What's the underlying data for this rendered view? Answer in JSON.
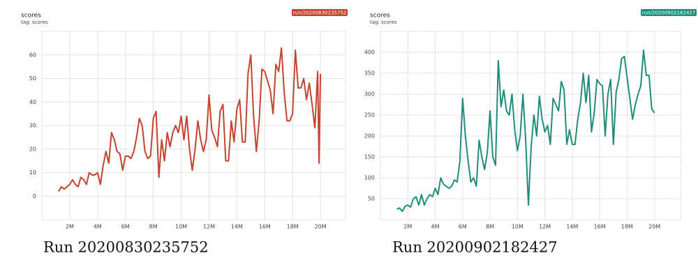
{
  "chart_data": [
    {
      "type": "line",
      "title": "scores",
      "subtitle": "tag: scores",
      "caption": "Run 20200830235752",
      "x": [
        1200000,
        1400000,
        1600000,
        1800000,
        2000000,
        2200000,
        2400000,
        2600000,
        2800000,
        3000000,
        3200000,
        3400000,
        3600000,
        3800000,
        4000000,
        4200000,
        4400000,
        4600000,
        4800000,
        5000000,
        5200000,
        5400000,
        5600000,
        5800000,
        6000000,
        6200000,
        6400000,
        6600000,
        6800000,
        7000000,
        7200000,
        7400000,
        7600000,
        7800000,
        8000000,
        8200000,
        8400000,
        8600000,
        8800000,
        9000000,
        9200000,
        9400000,
        9600000,
        9800000,
        10000000,
        10200000,
        10400000,
        10600000,
        10800000,
        11000000,
        11200000,
        11400000,
        11600000,
        11800000,
        12000000,
        12200000,
        12400000,
        12600000,
        12800000,
        13000000,
        13200000,
        13400000,
        13600000,
        13800000,
        14000000,
        14200000,
        14400000,
        14600000,
        14800000,
        15000000,
        15200000,
        15400000,
        15600000,
        15800000,
        16000000,
        16200000,
        16400000,
        16600000,
        16800000,
        17000000,
        17200000,
        17400000,
        17600000,
        17800000,
        18000000,
        18200000,
        18400000,
        18600000,
        18800000,
        19000000,
        19200000,
        19400000,
        19600000,
        19800000,
        19900000,
        20000000
      ],
      "series": [
        {
          "name": "run/20200830235752",
          "color": "#c4432f",
          "values": [
            2,
            4,
            3,
            4,
            5,
            7,
            5,
            4,
            8,
            7,
            5,
            10,
            9,
            9,
            10,
            5,
            13,
            19,
            14,
            27,
            24,
            19,
            18,
            11,
            17,
            17,
            16,
            19,
            25,
            33,
            30,
            19,
            16,
            17,
            33,
            36,
            8,
            24,
            15,
            27,
            21,
            27,
            30,
            27,
            34,
            24,
            34,
            20,
            11,
            20,
            32,
            24,
            19,
            24,
            43,
            28,
            25,
            21,
            36,
            39,
            15,
            15,
            32,
            23,
            37,
            41,
            23,
            23,
            52,
            60,
            34,
            19,
            32,
            54,
            53,
            49,
            45,
            35,
            56,
            53,
            63,
            44,
            32,
            32,
            35,
            62,
            46,
            46,
            50,
            41,
            48,
            39,
            29,
            53,
            14,
            52
          ]
        }
      ],
      "xlim": [
        0,
        21800000
      ],
      "xticks": [
        {
          "value": 2000000,
          "label": "2M"
        },
        {
          "value": 4000000,
          "label": "4M"
        },
        {
          "value": 6000000,
          "label": "6M"
        },
        {
          "value": 8000000,
          "label": "8M"
        },
        {
          "value": 10000000,
          "label": "10M"
        },
        {
          "value": 12000000,
          "label": "12M"
        },
        {
          "value": 14000000,
          "label": "14M"
        },
        {
          "value": 16000000,
          "label": "16M"
        },
        {
          "value": 18000000,
          "label": "18M"
        },
        {
          "value": 20000000,
          "label": "20M"
        }
      ],
      "ylim": [
        -10,
        70
      ],
      "yticks": [
        0,
        10,
        20,
        30,
        40,
        50,
        60
      ],
      "grid": true
    },
    {
      "type": "line",
      "title": "scores",
      "subtitle": "tag: scores",
      "caption": "Run 20200902182427",
      "x": [
        1200000,
        1400000,
        1600000,
        1800000,
        2000000,
        2200000,
        2400000,
        2600000,
        2800000,
        3000000,
        3200000,
        3400000,
        3600000,
        3800000,
        4000000,
        4200000,
        4400000,
        4600000,
        4800000,
        5000000,
        5200000,
        5400000,
        5600000,
        5800000,
        6000000,
        6200000,
        6400000,
        6600000,
        6800000,
        7000000,
        7200000,
        7400000,
        7600000,
        7800000,
        8000000,
        8200000,
        8400000,
        8600000,
        8800000,
        9000000,
        9200000,
        9400000,
        9600000,
        9800000,
        10000000,
        10200000,
        10400000,
        10600000,
        10800000,
        11000000,
        11200000,
        11400000,
        11600000,
        11800000,
        12000000,
        12200000,
        12400000,
        12600000,
        12800000,
        13000000,
        13200000,
        13400000,
        13600000,
        13800000,
        14000000,
        14200000,
        14400000,
        14600000,
        14800000,
        15000000,
        15200000,
        15400000,
        15600000,
        15800000,
        16000000,
        16200000,
        16400000,
        16600000,
        16800000,
        17000000,
        17200000,
        17400000,
        17600000,
        17800000,
        18000000,
        18200000,
        18400000,
        18600000,
        18800000,
        19000000,
        19200000,
        19400000,
        19600000,
        19800000,
        20000000
      ],
      "series": [
        {
          "name": "run/20200902182427",
          "color": "#1f8c7c",
          "values": [
            25,
            28,
            20,
            32,
            35,
            30,
            50,
            55,
            35,
            60,
            35,
            50,
            60,
            55,
            75,
            60,
            100,
            85,
            80,
            75,
            80,
            95,
            90,
            140,
            290,
            200,
            140,
            90,
            100,
            80,
            190,
            150,
            120,
            160,
            260,
            150,
            130,
            380,
            270,
            310,
            260,
            250,
            300,
            215,
            165,
            200,
            300,
            190,
            35,
            175,
            250,
            200,
            295,
            240,
            210,
            225,
            180,
            290,
            275,
            260,
            330,
            310,
            180,
            215,
            180,
            180,
            240,
            280,
            350,
            280,
            345,
            210,
            255,
            335,
            325,
            320,
            200,
            300,
            335,
            180,
            305,
            335,
            385,
            390,
            340,
            290,
            240,
            275,
            300,
            320,
            405,
            345,
            345,
            265,
            255
          ]
        }
      ],
      "xlim": [
        0,
        21900000
      ],
      "xticks": [
        {
          "value": 2000000,
          "label": "2M"
        },
        {
          "value": 4000000,
          "label": "4M"
        },
        {
          "value": 6000000,
          "label": "6M"
        },
        {
          "value": 8000000,
          "label": "8M"
        },
        {
          "value": 10000000,
          "label": "10M"
        },
        {
          "value": 12000000,
          "label": "12M"
        },
        {
          "value": 14000000,
          "label": "14M"
        },
        {
          "value": 16000000,
          "label": "16M"
        },
        {
          "value": 18000000,
          "label": "18M"
        },
        {
          "value": 20000000,
          "label": "20M"
        }
      ],
      "ylim": [
        0,
        450
      ],
      "yticks": [
        50,
        100,
        150,
        200,
        250,
        300,
        350,
        400
      ],
      "grid": true
    }
  ]
}
